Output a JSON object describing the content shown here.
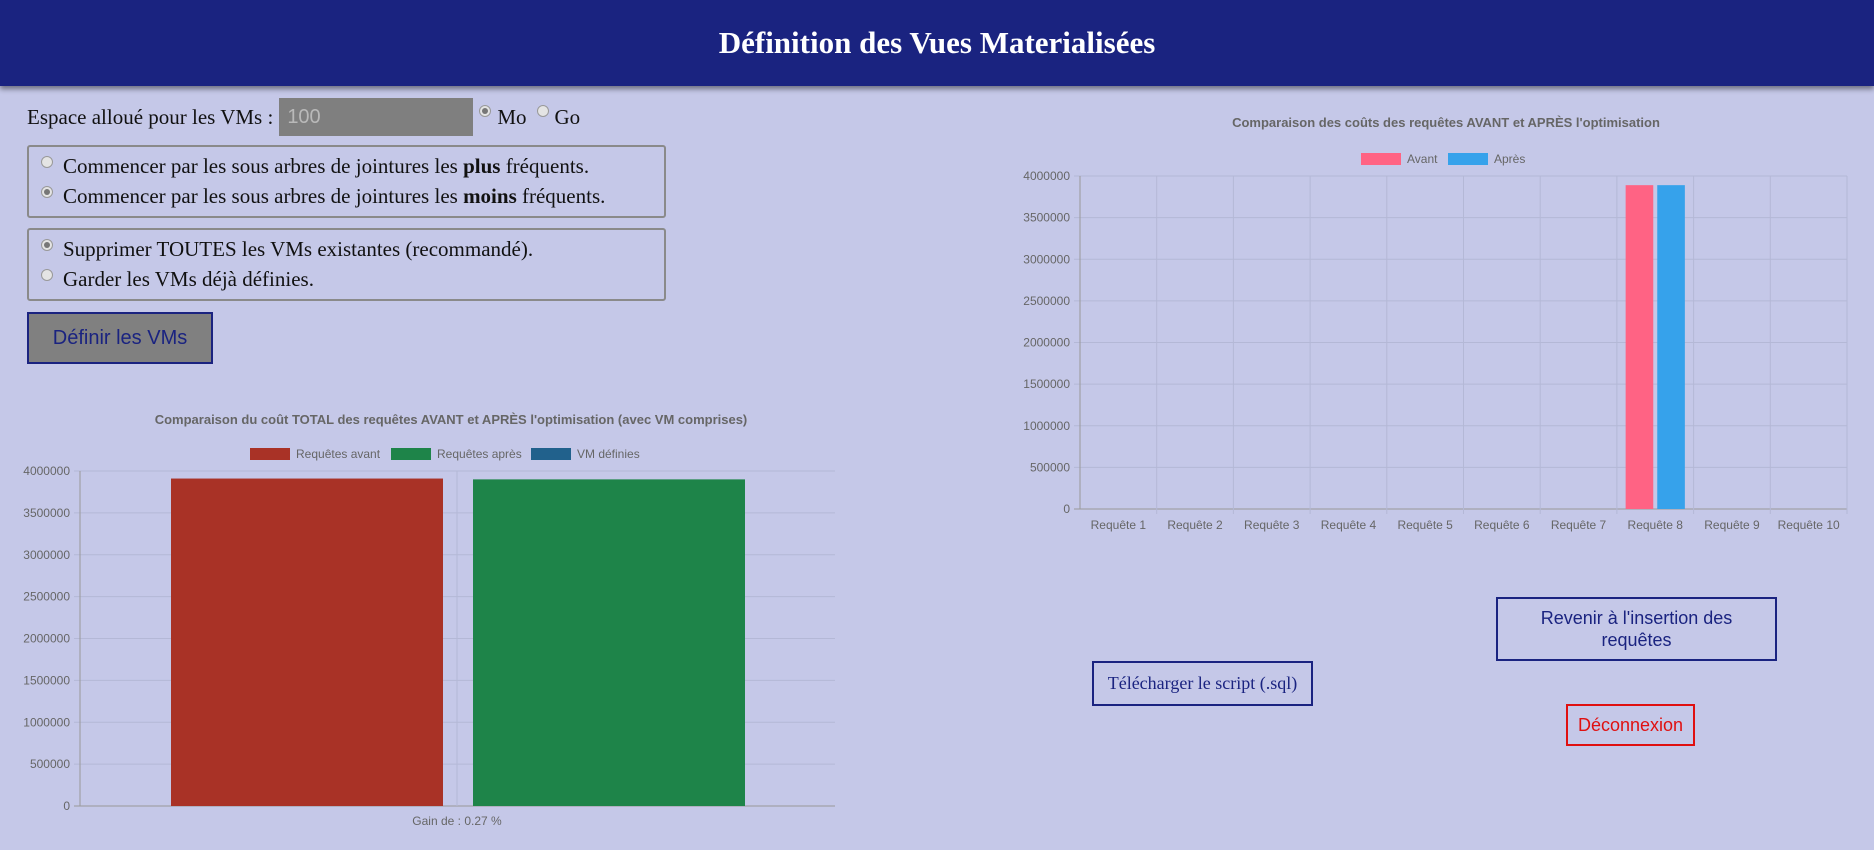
{
  "header": {
    "title": "Définition des Vues Materialisées"
  },
  "space": {
    "label": "Espace alloué pour les VMs :",
    "placeholder": "100",
    "unit_mo": "Mo",
    "unit_go": "Go",
    "selected_unit": "Mo"
  },
  "order_options": {
    "options": [
      {
        "prefix": "Commencer par les sous arbres de jointures les ",
        "bold": "plus",
        "suffix": " fréquents.",
        "checked": false
      },
      {
        "prefix": "Commencer par les sous arbres de jointures les ",
        "bold": "moins",
        "suffix": " fréquents.",
        "checked": true
      }
    ]
  },
  "vm_options": {
    "options": [
      {
        "label": "Supprimer TOUTES les VMs existantes (recommandé).",
        "checked": true
      },
      {
        "label": "Garder les VMs déjà définies.",
        "checked": false
      }
    ]
  },
  "buttons": {
    "define": "Définir les VMs",
    "download_script": "Télécharger le script (.sql)",
    "back": "Revenir à l'insertion des requêtes",
    "logout": "Déconnexion"
  },
  "colors": {
    "header": "#1a2380",
    "background": "#c5c8e8",
    "avant": "#ff6384",
    "apres": "#36a2eb",
    "total_avant": "#a93226",
    "total_apres": "#1e8449",
    "vm_definies": "#21618c"
  },
  "chart_data": [
    {
      "id": "total",
      "type": "bar",
      "title": "Comparaison du coût TOTAL des requêtes AVANT et APRÈS l'optimisation (avec VM comprises)",
      "xlabel": "Gain de : 0.27 %",
      "ylim": [
        0,
        4000000
      ],
      "y_ticks": [
        "0",
        "500000",
        "1000000",
        "1500000",
        "2000000",
        "2500000",
        "3000000",
        "3500000",
        "4000000"
      ],
      "legend_position": "top",
      "series": [
        {
          "name": "Requêtes avant",
          "color": "#a93226",
          "value": 3910000
        },
        {
          "name": "Requêtes après",
          "color": "#1e8449",
          "value": 3900000
        },
        {
          "name": "VM définies",
          "color": "#21618c",
          "value": 0
        }
      ]
    },
    {
      "id": "per_query",
      "type": "bar",
      "title": "Comparaison des coûts des requêtes AVANT et APRÈS l'optimisation",
      "ylim": [
        0,
        4000000
      ],
      "y_ticks": [
        "0",
        "500000",
        "1000000",
        "1500000",
        "2000000",
        "2500000",
        "3000000",
        "3500000",
        "4000000"
      ],
      "legend_position": "top",
      "categories": [
        "Requête 1",
        "Requête 2",
        "Requête 3",
        "Requête 4",
        "Requête 5",
        "Requête 6",
        "Requête 7",
        "Requête 8",
        "Requête 9",
        "Requête 10"
      ],
      "series": [
        {
          "name": "Avant",
          "color": "#ff6384",
          "values": [
            0,
            0,
            0,
            0,
            0,
            0,
            0,
            3890000,
            0,
            0
          ]
        },
        {
          "name": "Après",
          "color": "#36a2eb",
          "values": [
            0,
            0,
            0,
            0,
            0,
            0,
            0,
            3890000,
            0,
            0
          ]
        }
      ]
    }
  ]
}
